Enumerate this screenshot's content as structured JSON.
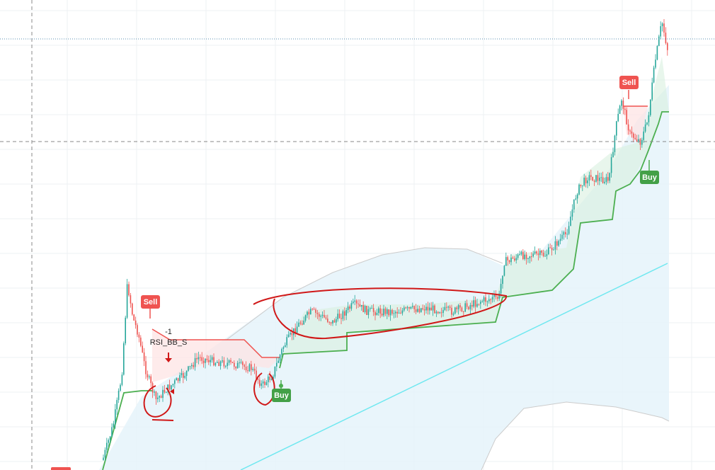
{
  "signals": [
    {
      "label": "Sell"
    },
    {
      "label": "Buy"
    },
    {
      "label": "Sell"
    },
    {
      "label": "Buy"
    }
  ],
  "indicator": {
    "value_label": "-1",
    "name": "RSI_BB_S"
  }
}
